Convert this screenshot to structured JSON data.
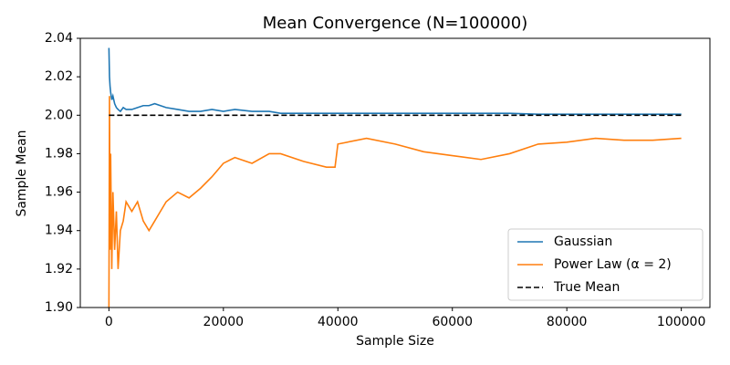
{
  "chart_data": {
    "type": "line",
    "title": "Mean Convergence (N=100000)",
    "x_label": "Sample Size",
    "y_label": "Sample Mean",
    "x": [
      1,
      100,
      200,
      300,
      500,
      700,
      1000,
      1300,
      1600,
      2000,
      2500,
      3000,
      4000,
      5000,
      6000,
      7000,
      8000,
      9000,
      10000,
      12000,
      14000,
      16000,
      18000,
      20000,
      22000,
      25000,
      28000,
      30000,
      34000,
      38000,
      39500,
      40000,
      45000,
      50000,
      55000,
      60000,
      65000,
      70000,
      75000,
      80000,
      85000,
      90000,
      95000,
      100000
    ],
    "series": [
      {
        "name": "Gaussian",
        "color": "#1f77b4",
        "values": [
          2.035,
          2.02,
          2.015,
          2.012,
          2.008,
          2.01,
          2.006,
          2.004,
          2.003,
          2.002,
          2.004,
          2.003,
          2.003,
          2.004,
          2.005,
          2.005,
          2.006,
          2.005,
          2.004,
          2.003,
          2.002,
          2.002,
          2.003,
          2.002,
          2.003,
          2.002,
          2.002,
          2.001,
          2.001,
          2.001,
          2.001,
          2.001,
          2.001,
          2.001,
          2.001,
          2.001,
          2.001,
          2.001,
          2.0005,
          2.0005,
          2.0005,
          2.0005,
          2.0005,
          2.0005
        ]
      },
      {
        "name": "Power Law (α = 2)",
        "color": "#ff7f0e",
        "values": [
          1.9,
          2.01,
          1.93,
          1.98,
          1.92,
          1.96,
          1.93,
          1.95,
          1.92,
          1.94,
          1.945,
          1.955,
          1.95,
          1.955,
          1.945,
          1.94,
          1.945,
          1.95,
          1.955,
          1.96,
          1.957,
          1.962,
          1.968,
          1.975,
          1.978,
          1.975,
          1.98,
          1.98,
          1.976,
          1.973,
          1.973,
          1.985,
          1.988,
          1.985,
          1.981,
          1.979,
          1.977,
          1.98,
          1.985,
          1.986,
          1.988,
          1.987,
          1.987,
          1.988
        ]
      },
      {
        "name": "True Mean",
        "color": "#000000",
        "dashed": true,
        "values": [
          2.0,
          2.0,
          2.0,
          2.0,
          2.0,
          2.0,
          2.0,
          2.0,
          2.0,
          2.0,
          2.0,
          2.0,
          2.0,
          2.0,
          2.0,
          2.0,
          2.0,
          2.0,
          2.0,
          2.0,
          2.0,
          2.0,
          2.0,
          2.0,
          2.0,
          2.0,
          2.0,
          2.0,
          2.0,
          2.0,
          2.0,
          2.0,
          2.0,
          2.0,
          2.0,
          2.0,
          2.0,
          2.0,
          2.0,
          2.0,
          2.0,
          2.0,
          2.0,
          2.0
        ]
      }
    ],
    "xlim": [
      -5000,
      105000
    ],
    "xticks": [
      0,
      20000,
      40000,
      60000,
      80000,
      100000
    ],
    "ylim": [
      1.9,
      2.04
    ],
    "yticks": [
      {
        "value": 1.9,
        "label": "1.90"
      },
      1.92,
      1.94,
      1.96,
      1.98,
      {
        "value": 2.0,
        "label": "2.00"
      },
      2.02,
      2.04
    ],
    "grid": false,
    "legend": "lower right"
  }
}
